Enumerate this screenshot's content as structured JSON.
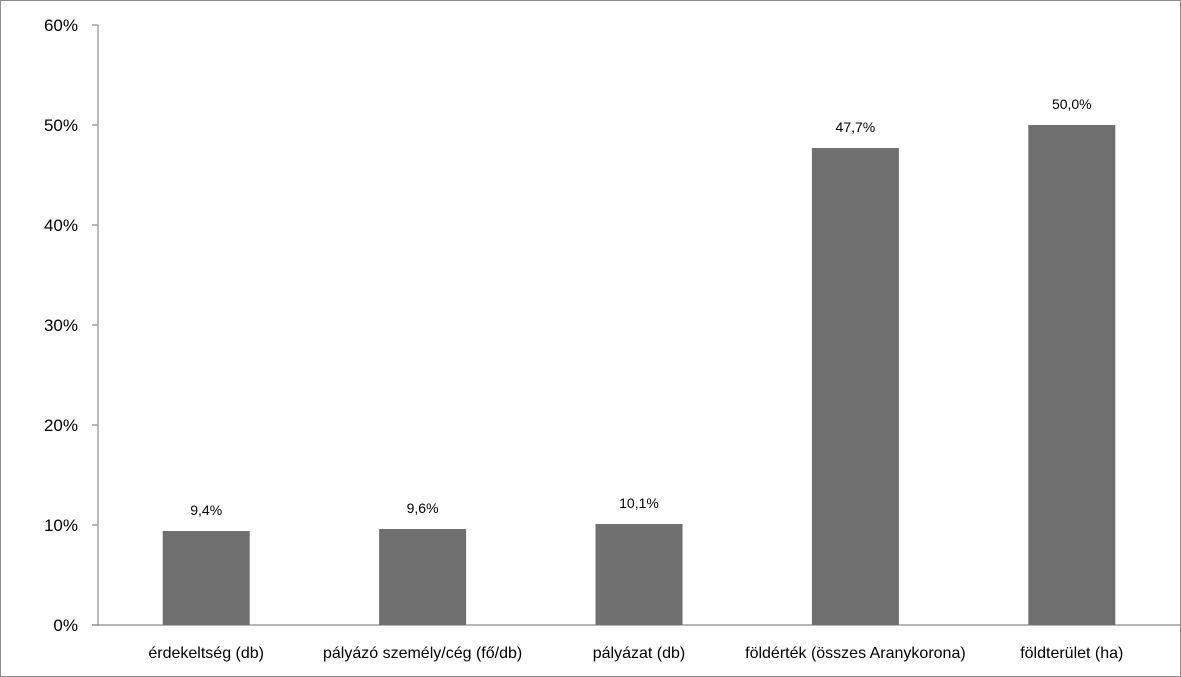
{
  "chart_data": {
    "type": "bar",
    "categories": [
      "érdekeltség (db)",
      "pályázó személy/cég (fő/db)",
      "pályázat (db)",
      "földérték (összes Aranykorona)",
      "földterület (ha)"
    ],
    "values": [
      9.4,
      9.6,
      10.1,
      47.7,
      50.0
    ],
    "data_labels": [
      "9,4%",
      "9,6%",
      "10,1%",
      "47,7%",
      "50,0%"
    ],
    "title": "",
    "xlabel": "",
    "ylabel": "",
    "ylim": [
      0,
      60
    ],
    "yticks": [
      0,
      10,
      20,
      30,
      40,
      50,
      60
    ],
    "ytick_labels": [
      "0%",
      "10%",
      "20%",
      "30%",
      "40%",
      "50%",
      "60%"
    ],
    "grid": false,
    "legend": "none",
    "bar_color": "#6f6f6f",
    "axis_color": "#8c8c8c"
  }
}
